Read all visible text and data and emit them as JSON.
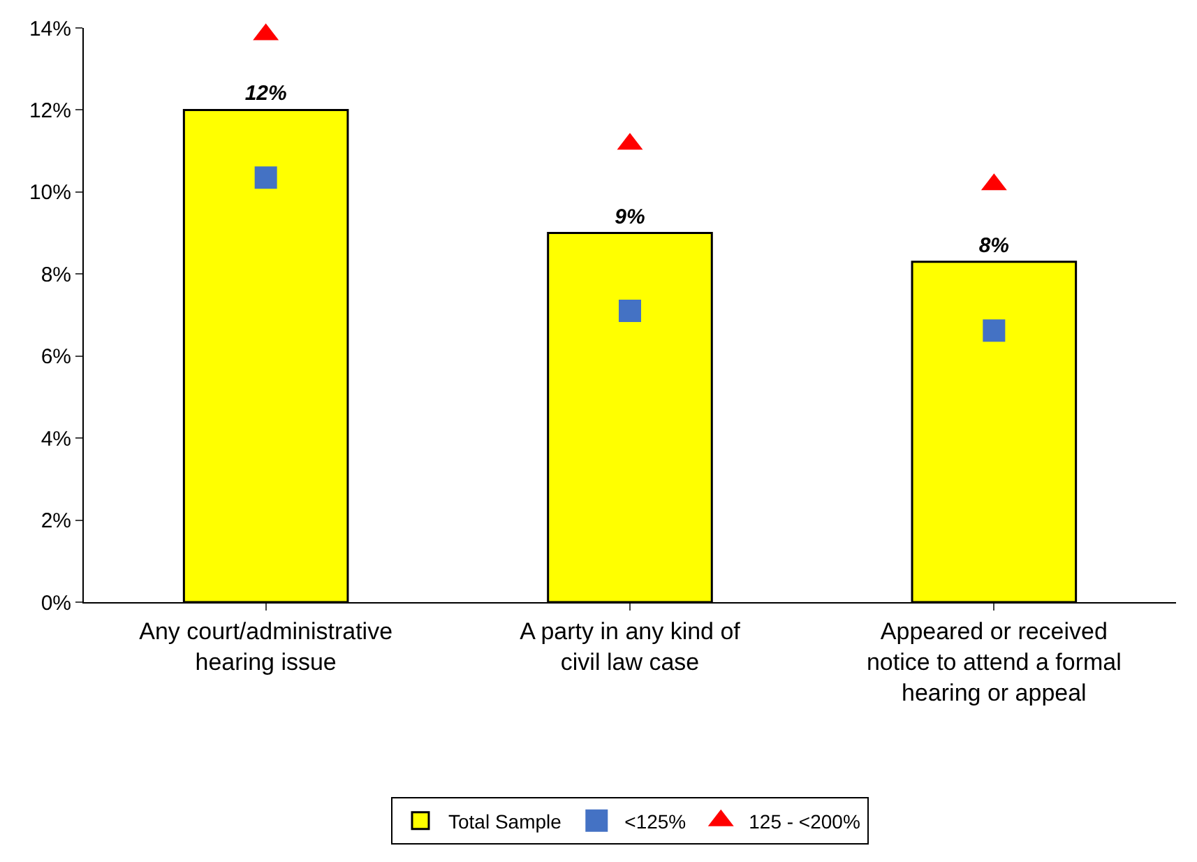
{
  "chart_data": {
    "type": "bar",
    "categories": [
      "Any court/administrative hearing issue",
      "A party in any kind of civil law case",
      "Appeared or received notice to attend a formal hearing or appeal"
    ],
    "series": [
      {
        "name": "Total Sample",
        "color": "#ffff00",
        "values": [
          12.0,
          9.0,
          8.3
        ],
        "value_labels": [
          "12%",
          "9%",
          "8%"
        ]
      },
      {
        "name": "<125%",
        "type": "scatter",
        "marker": "square",
        "color": "#4472c4",
        "values": [
          10.35,
          7.1,
          6.62
        ]
      },
      {
        "name": "125 - <200%",
        "type": "scatter",
        "marker": "triangle",
        "color": "#ff0000",
        "values": [
          13.84,
          11.17,
          10.18
        ]
      }
    ],
    "ylim": [
      0,
      14
    ],
    "yticks": [
      {
        "value": 0,
        "label": "0%"
      },
      {
        "value": 2,
        "label": "2%"
      },
      {
        "value": 4,
        "label": "4%"
      },
      {
        "value": 6,
        "label": "6%"
      },
      {
        "value": 8,
        "label": "8%"
      },
      {
        "value": 10,
        "label": "10%"
      },
      {
        "value": 12,
        "label": "12%"
      },
      {
        "value": 14,
        "label": "14%"
      }
    ],
    "legend": "bottom"
  }
}
